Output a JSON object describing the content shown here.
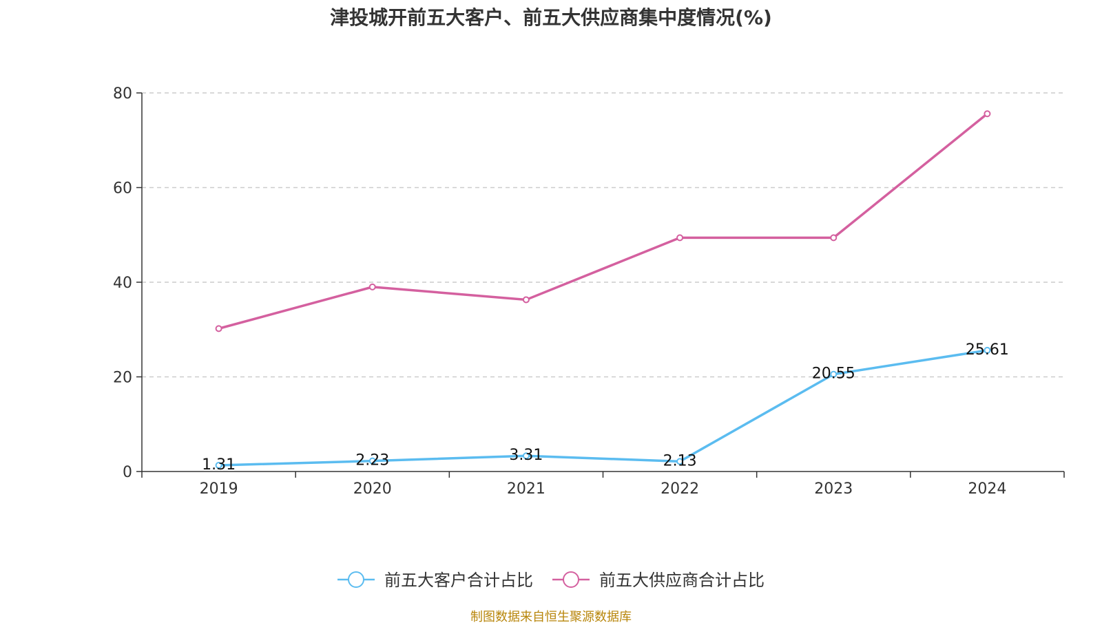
{
  "chart_data": {
    "type": "line",
    "title": "津投城开前五大客户、前五大供应商集中度情况(%)",
    "categories": [
      "2019",
      "2020",
      "2021",
      "2022",
      "2023",
      "2024"
    ],
    "ylim": [
      0,
      80
    ],
    "yticks": [
      0,
      20,
      40,
      60,
      80
    ],
    "grid": true,
    "legend_position": "bottom",
    "series": [
      {
        "name": "前五大客户合计占比",
        "color": "#5bbcf0",
        "values": [
          1.31,
          2.23,
          3.31,
          2.13,
          20.55,
          25.61
        ],
        "labels": [
          "1.31",
          "2.23",
          "3.31",
          "2.13",
          "20.55",
          "25.61"
        ]
      },
      {
        "name": "前五大供应商合计占比",
        "color": "#d4609f",
        "values": [
          30.2,
          39.0,
          36.3,
          49.4,
          49.4,
          75.6
        ]
      }
    ]
  },
  "source_note": "制图数据来自恒生聚源数据库"
}
